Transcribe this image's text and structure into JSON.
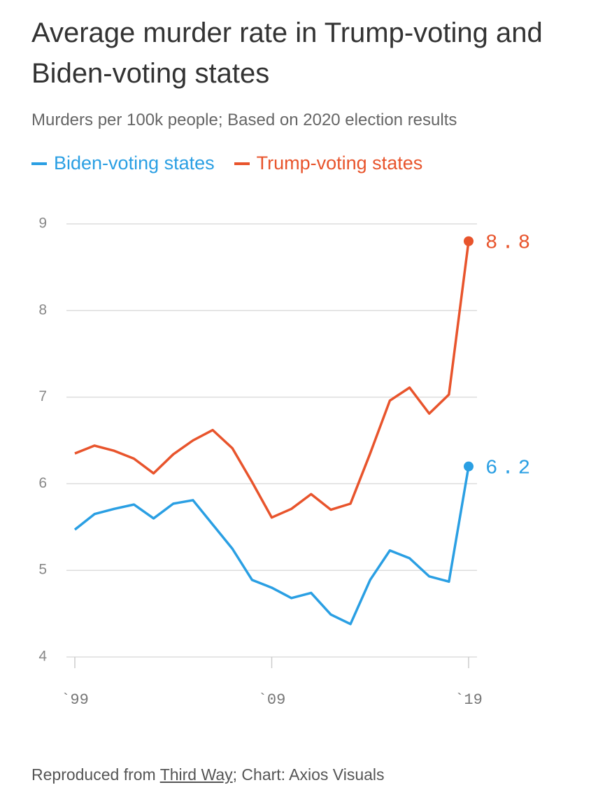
{
  "chart_data": {
    "type": "line",
    "title": "Average murder rate in Trump-voting and Biden-voting states",
    "subtitle": "Murders per 100k people; Based on 2020 election results",
    "x": [
      1999,
      2000,
      2001,
      2002,
      2003,
      2004,
      2005,
      2006,
      2007,
      2008,
      2009,
      2010,
      2011,
      2012,
      2013,
      2014,
      2015,
      2016,
      2017,
      2018,
      2019
    ],
    "series": [
      {
        "name": "Biden-voting states",
        "color": "#2a9fe3",
        "values": [
          5.47,
          5.65,
          5.71,
          5.76,
          5.6,
          5.77,
          5.81,
          5.53,
          5.25,
          4.89,
          4.8,
          4.68,
          4.74,
          4.49,
          4.38,
          4.89,
          5.23,
          5.14,
          4.93,
          4.87,
          6.2
        ]
      },
      {
        "name": "Trump-voting states",
        "color": "#e8542c",
        "values": [
          6.35,
          6.44,
          6.38,
          6.29,
          6.12,
          6.34,
          6.5,
          6.62,
          6.41,
          6.02,
          5.61,
          5.71,
          5.88,
          5.7,
          5.77,
          6.35,
          6.96,
          7.11,
          6.81,
          7.03,
          8.8
        ]
      }
    ],
    "xlim": [
      1999,
      2019
    ],
    "xticks": [
      {
        "value": 1999,
        "label": "`99"
      },
      {
        "value": 2009,
        "label": "`09"
      },
      {
        "value": 2019,
        "label": "`19"
      }
    ],
    "ylim": [
      4,
      9
    ],
    "yticks": [
      4,
      5,
      6,
      7,
      8,
      9
    ],
    "grid": true,
    "source": {
      "prefix": "Reproduced from ",
      "link": "Third Way",
      "suffix": "; Chart: Axios Visuals"
    }
  }
}
